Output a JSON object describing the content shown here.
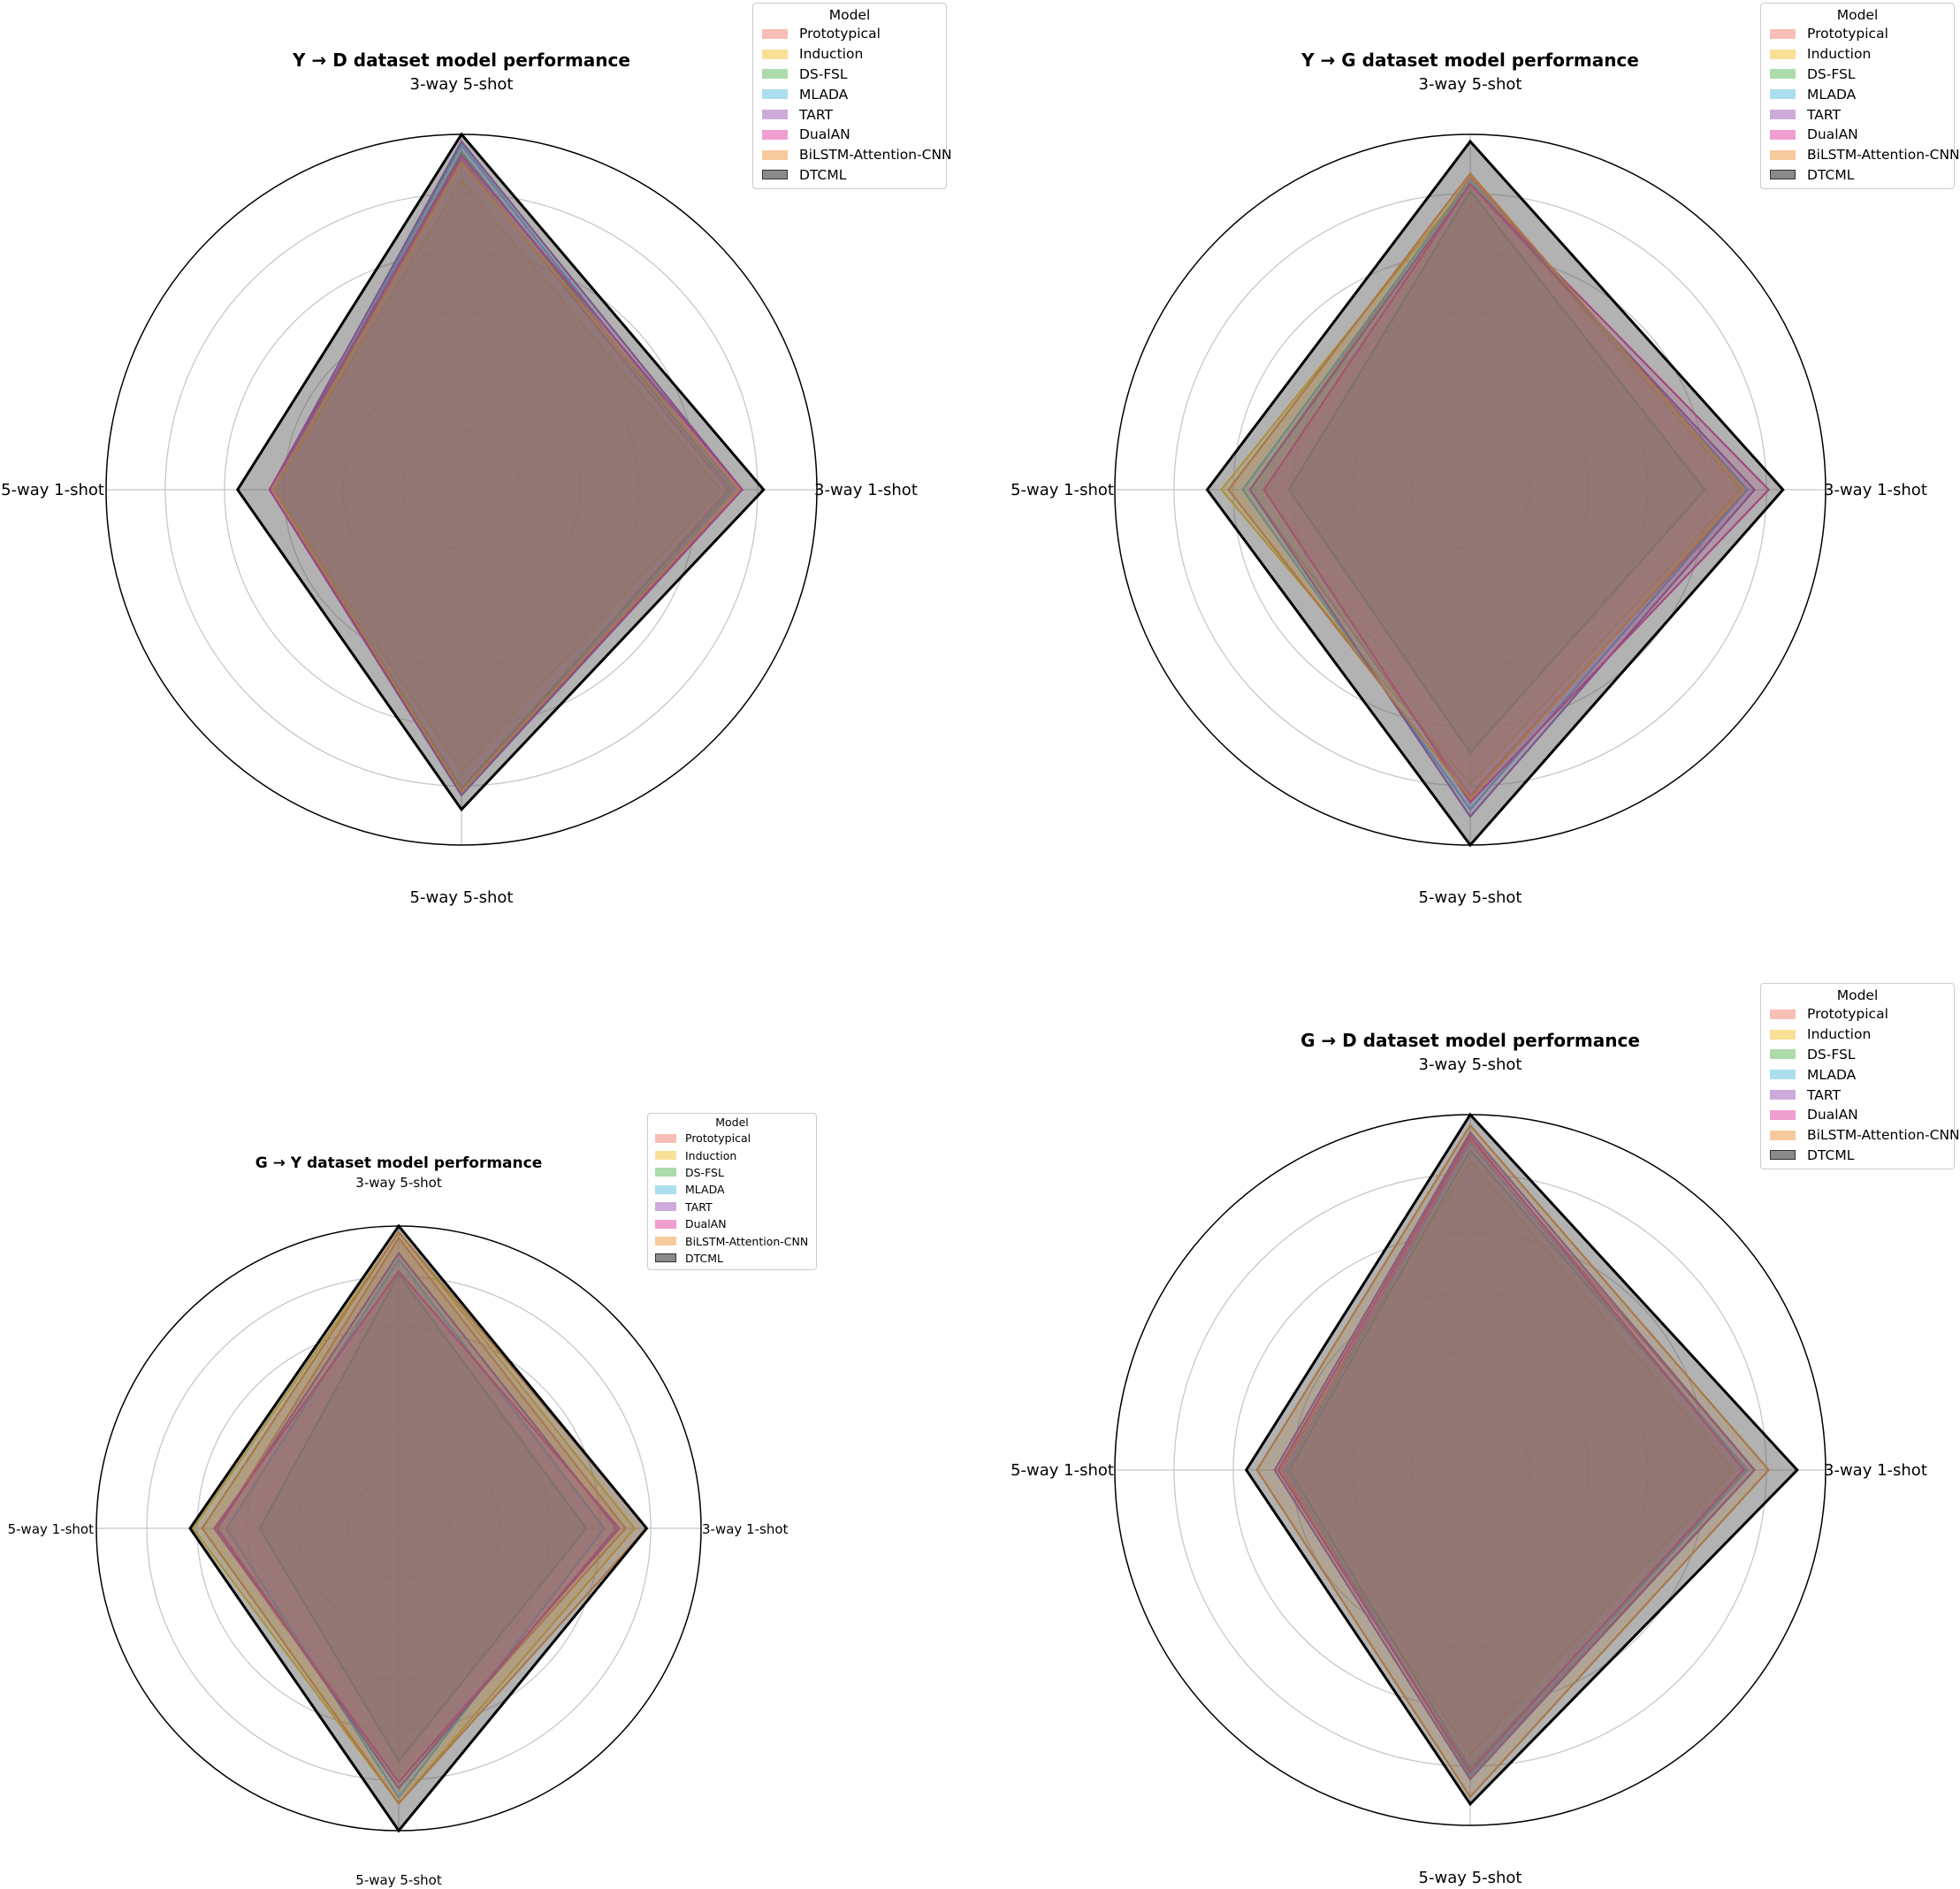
{
  "colors": {
    "Prototypical": "#f08070",
    "Induction": "#f5c330",
    "DS-FSL": "#5cb85c",
    "MLADA": "#5bc0de",
    "TART": "#9b59b6",
    "DualAN": "#e040a0",
    "BiLSTM-Attention-CNN": "#f0963c",
    "DTCML": "#555555",
    "grid": "#c8c8c8",
    "border": "#000000"
  },
  "chart_data": [
    {
      "type": "radar",
      "title": "Y → D dataset model performance",
      "axes": [
        "3-way 5-shot",
        "3-way 1-shot",
        "5-way 5-shot",
        "5-way 1-shot"
      ],
      "rlim": [
        0,
        100
      ],
      "rticks": [
        16.67,
        33.33,
        50,
        66.67,
        83.33,
        100
      ],
      "legend": {
        "title": "Model",
        "position": "upper-right"
      },
      "series": [
        {
          "name": "Prototypical",
          "values": [
            93,
            75,
            85,
            53
          ]
        },
        {
          "name": "Induction",
          "values": [
            87,
            73,
            79,
            53
          ]
        },
        {
          "name": "DS-FSL",
          "values": [
            95,
            76,
            84,
            53
          ]
        },
        {
          "name": "MLADA",
          "values": [
            97,
            77,
            85,
            53
          ]
        },
        {
          "name": "TART",
          "values": [
            98,
            79,
            86,
            54
          ]
        },
        {
          "name": "DualAN",
          "values": [
            94,
            79,
            85,
            54
          ]
        },
        {
          "name": "BiLSTM-Attention-CNN",
          "values": [
            92,
            78,
            85,
            53
          ]
        },
        {
          "name": "DTCML",
          "values": [
            100,
            85,
            90,
            63
          ]
        }
      ]
    },
    {
      "type": "radar",
      "title": "Y → G dataset model performance",
      "axes": [
        "3-way 5-shot",
        "3-way 1-shot",
        "5-way 5-shot",
        "5-way 1-shot"
      ],
      "rlim": [
        0,
        100
      ],
      "rticks": [
        16.67,
        33.33,
        50,
        66.67,
        83.33,
        100
      ],
      "legend": {
        "title": "Model",
        "position": "upper-right"
      },
      "series": [
        {
          "name": "Prototypical",
          "values": [
            88,
            78,
            86,
            62
          ]
        },
        {
          "name": "Induction",
          "values": [
            87,
            76,
            83,
            70
          ]
        },
        {
          "name": "DS-FSL",
          "values": [
            84,
            66,
            74,
            51
          ]
        },
        {
          "name": "MLADA",
          "values": [
            87,
            78,
            90,
            64
          ]
        },
        {
          "name": "TART",
          "values": [
            86,
            80,
            92,
            62
          ]
        },
        {
          "name": "DualAN",
          "values": [
            86,
            84,
            88,
            58
          ]
        },
        {
          "name": "BiLSTM-Attention-CNN",
          "values": [
            89,
            77,
            87,
            68
          ]
        },
        {
          "name": "DTCML",
          "values": [
            98,
            88,
            100,
            74
          ]
        }
      ]
    },
    {
      "type": "radar",
      "title": "G → Y dataset model performance",
      "axes": [
        "3-way 5-shot",
        "3-way 1-shot",
        "5-way 5-shot",
        "5-way 1-shot"
      ],
      "rlim": [
        0,
        100
      ],
      "rticks": [
        16.67,
        33.33,
        50,
        66.67,
        83.33,
        100
      ],
      "legend": {
        "title": "Model",
        "position": "upper-right"
      },
      "series": [
        {
          "name": "Prototypical",
          "values": [
            96,
            75,
            84,
            60
          ]
        },
        {
          "name": "Induction",
          "values": [
            98,
            78,
            91,
            68
          ]
        },
        {
          "name": "DS-FSL",
          "values": [
            84,
            62,
            77,
            46
          ]
        },
        {
          "name": "MLADA",
          "values": [
            89,
            68,
            89,
            57
          ]
        },
        {
          "name": "TART",
          "values": [
            91,
            72,
            86,
            60
          ]
        },
        {
          "name": "DualAN",
          "values": [
            85,
            73,
            84,
            61
          ]
        },
        {
          "name": "BiLSTM-Attention-CNN",
          "values": [
            98,
            82,
            91,
            65
          ]
        },
        {
          "name": "DTCML",
          "values": [
            100,
            82,
            100,
            69
          ]
        }
      ]
    },
    {
      "type": "radar",
      "title": "G → D dataset model performance",
      "axes": [
        "3-way 5-shot",
        "3-way 1-shot",
        "5-way 5-shot",
        "5-way 1-shot"
      ],
      "rlim": [
        0,
        100
      ],
      "rticks": [
        16.67,
        33.33,
        50,
        66.67,
        83.33,
        100
      ],
      "legend": {
        "title": "Model",
        "position": "upper-right"
      },
      "series": [
        {
          "name": "Prototypical",
          "values": [
            93,
            80,
            86,
            53
          ]
        },
        {
          "name": "Induction",
          "values": [
            87,
            74,
            80,
            54
          ]
        },
        {
          "name": "DS-FSL",
          "values": [
            90,
            78,
            84,
            51
          ]
        },
        {
          "name": "MLADA",
          "values": [
            92,
            78,
            86,
            52
          ]
        },
        {
          "name": "TART",
          "values": [
            95,
            80,
            87,
            55
          ]
        },
        {
          "name": "DualAN",
          "values": [
            94,
            77,
            85,
            54
          ]
        },
        {
          "name": "BiLSTM-Attention-CNN",
          "values": [
            97,
            84,
            92,
            60
          ]
        },
        {
          "name": "DTCML",
          "values": [
            100,
            92,
            94,
            63
          ]
        }
      ]
    }
  ],
  "legend_title": "Model"
}
